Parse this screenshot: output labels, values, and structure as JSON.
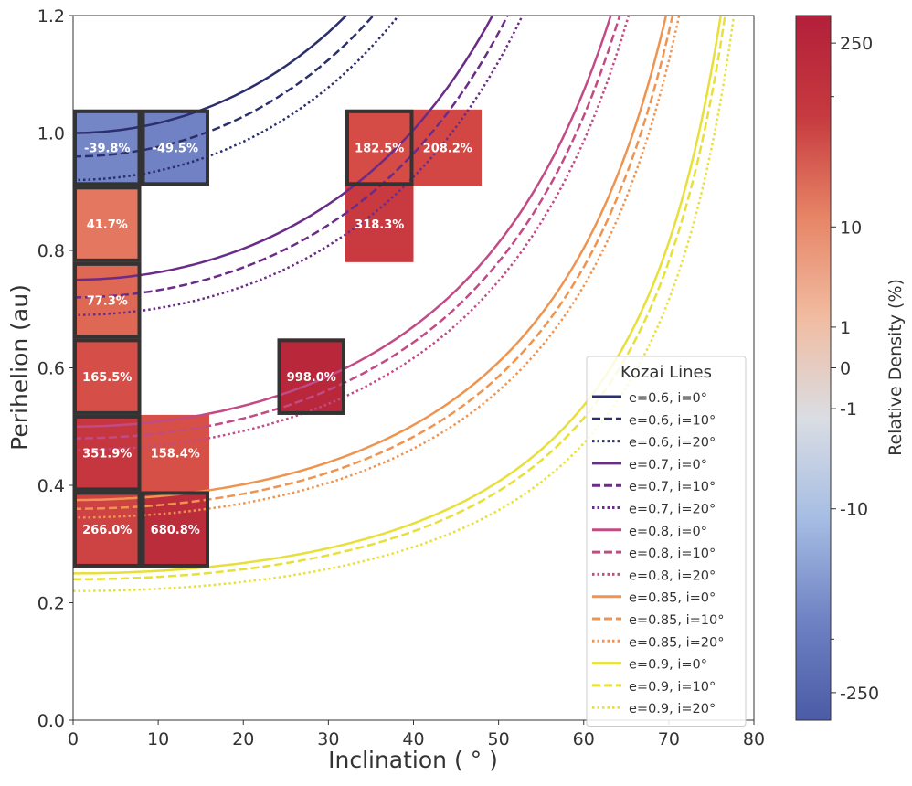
{
  "chart_data": {
    "type": "heatmap",
    "xlabel": "Inclination ( ° )",
    "ylabel": "Perihelion (au)",
    "xlim": [
      0,
      80
    ],
    "ylim": [
      0,
      1.2
    ],
    "x_ticks": [
      "0",
      "10",
      "20",
      "30",
      "40",
      "50",
      "60",
      "70",
      "80"
    ],
    "y_ticks": [
      "0.0",
      "0.2",
      "0.4",
      "0.6",
      "0.8",
      "1.0",
      "1.2"
    ],
    "cell_size": {
      "inclination_deg": 8,
      "perihelion_au": 0.13
    },
    "cells": [
      {
        "x": 0,
        "y": 0.91,
        "label": "-39.8%",
        "value": -39.8,
        "color": "#7486c6",
        "highlighted": true
      },
      {
        "x": 8,
        "y": 0.91,
        "label": "-49.5%",
        "value": -49.5,
        "color": "#7082c4",
        "highlighted": true
      },
      {
        "x": 32,
        "y": 0.91,
        "label": "182.5%",
        "value": 182.5,
        "color": "#d54b45",
        "highlighted": true
      },
      {
        "x": 40,
        "y": 0.91,
        "label": "208.2%",
        "value": 208.2,
        "color": "#d24744",
        "highlighted": false
      },
      {
        "x": 0,
        "y": 0.78,
        "label": "41.7%",
        "value": 41.7,
        "color": "#e3775f",
        "highlighted": true
      },
      {
        "x": 32,
        "y": 0.78,
        "label": "318.3%",
        "value": 318.3,
        "color": "#c83a3f",
        "highlighted": false
      },
      {
        "x": 0,
        "y": 0.65,
        "label": "77.3%",
        "value": 77.3,
        "color": "#de6854",
        "highlighted": true
      },
      {
        "x": 0,
        "y": 0.52,
        "label": "165.5%",
        "value": 165.5,
        "color": "#d54e47",
        "highlighted": true
      },
      {
        "x": 24,
        "y": 0.52,
        "label": "998.0%",
        "value": 998.0,
        "color": "#b8283a",
        "highlighted": true
      },
      {
        "x": 0,
        "y": 0.39,
        "label": "351.9%",
        "value": 351.9,
        "color": "#c6363e",
        "highlighted": true
      },
      {
        "x": 8,
        "y": 0.39,
        "label": "158.4%",
        "value": 158.4,
        "color": "#d65047",
        "highlighted": false
      },
      {
        "x": 0,
        "y": 0.26,
        "label": "266.0%",
        "value": 266.0,
        "color": "#cd4242",
        "highlighted": true
      },
      {
        "x": 8,
        "y": 0.26,
        "label": "680.8%",
        "value": 680.8,
        "color": "#bb2d3b",
        "highlighted": true
      }
    ],
    "kozai_lines": {
      "legend_title": "Kozai Lines",
      "legend_position": "lower right",
      "series": [
        {
          "name": "e=0.6, i=0°",
          "color": "#2c2f6e",
          "dash": "solid",
          "q0": 1.0
        },
        {
          "name": "e=0.6, i=10°",
          "color": "#2c2f6e",
          "dash": "dashed",
          "q0": 0.96
        },
        {
          "name": "e=0.6, i=20°",
          "color": "#2c2f6e",
          "dash": "dotted",
          "q0": 0.92
        },
        {
          "name": "e=0.7, i=0°",
          "color": "#6a2c86",
          "dash": "solid",
          "q0": 0.75
        },
        {
          "name": "e=0.7, i=10°",
          "color": "#6a2c86",
          "dash": "dashed",
          "q0": 0.72
        },
        {
          "name": "e=0.7, i=20°",
          "color": "#6a2c86",
          "dash": "dotted",
          "q0": 0.69
        },
        {
          "name": "e=0.8, i=0°",
          "color": "#c24a85",
          "dash": "solid",
          "q0": 0.5
        },
        {
          "name": "e=0.8, i=10°",
          "color": "#c24a85",
          "dash": "dashed",
          "q0": 0.48
        },
        {
          "name": "e=0.8, i=20°",
          "color": "#c24a85",
          "dash": "dotted",
          "q0": 0.46
        },
        {
          "name": "e=0.85, i=0°",
          "color": "#ef9450",
          "dash": "solid",
          "q0": 0.375
        },
        {
          "name": "e=0.85, i=10°",
          "color": "#ef9450",
          "dash": "dashed",
          "q0": 0.36
        },
        {
          "name": "e=0.85, i=20°",
          "color": "#ef9450",
          "dash": "dotted",
          "q0": 0.345
        },
        {
          "name": "e=0.9, i=0°",
          "color": "#e8e03a",
          "dash": "solid",
          "q0": 0.25
        },
        {
          "name": "e=0.9, i=10°",
          "color": "#e8e03a",
          "dash": "dashed",
          "q0": 0.24
        },
        {
          "name": "e=0.9, i=20°",
          "color": "#e8e03a",
          "dash": "dotted",
          "q0": 0.22
        }
      ]
    },
    "colorbar": {
      "label": "Relative Density (%)",
      "ticks": [
        "250",
        "10",
        "1",
        "0",
        "-1",
        "-10",
        "-250"
      ],
      "tick_values": [
        250,
        10,
        1,
        0,
        -1,
        -10,
        -250
      ],
      "scale": "symlog",
      "range": [
        -400,
        400
      ],
      "colormap": [
        "#4b5ba6",
        "#6f82c4",
        "#a6bde3",
        "#dadde3",
        "#f1bca1",
        "#e78466",
        "#c63a3f",
        "#b31f3a"
      ]
    }
  }
}
